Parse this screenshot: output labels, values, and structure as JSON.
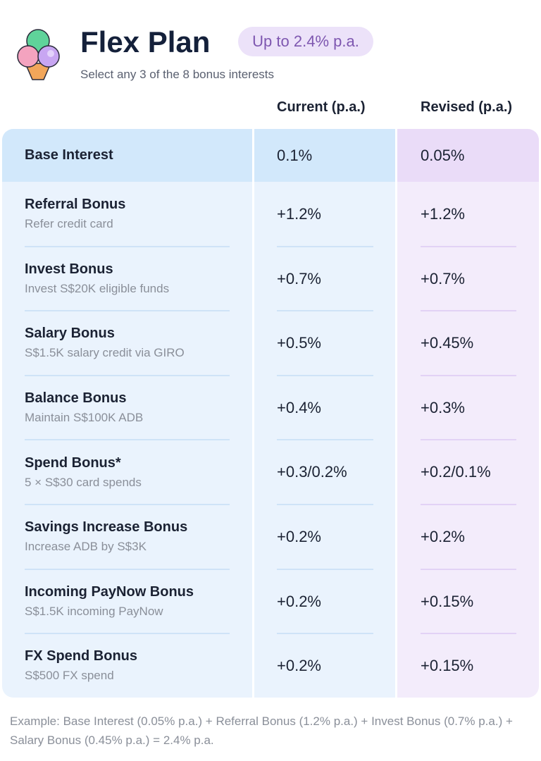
{
  "header": {
    "title": "Flex Plan",
    "badge": "Up to 2.4% p.a.",
    "subtitle": "Select any 3 of the 8 bonus interests"
  },
  "table": {
    "columns": [
      "Current (p.a.)",
      "Revised (p.a.)"
    ],
    "base": {
      "name": "Base Interest",
      "current": "0.1%",
      "revised": "0.05%"
    },
    "rows": [
      {
        "name": "Referral Bonus",
        "desc": "Refer credit card",
        "current": "+1.2%",
        "revised": "+1.2%"
      },
      {
        "name": "Invest Bonus",
        "desc": "Invest S$20K eligible funds",
        "current": "+0.7%",
        "revised": "+0.7%"
      },
      {
        "name": "Salary Bonus",
        "desc": "S$1.5K salary credit via GIRO",
        "current": "+0.5%",
        "revised": "+0.45%"
      },
      {
        "name": "Balance Bonus",
        "desc": "Maintain S$100K ADB",
        "current": "+0.4%",
        "revised": "+0.3%"
      },
      {
        "name": "Spend Bonus*",
        "desc": "5 × S$30 card spends",
        "current": "+0.3/0.2%",
        "revised": "+0.2/0.1%"
      },
      {
        "name": "Savings Increase Bonus",
        "desc": "Increase ADB by S$3K",
        "current": "+0.2%",
        "revised": "+0.2%"
      },
      {
        "name": "Incoming PayNow Bonus",
        "desc": "S$1.5K incoming PayNow",
        "current": "+0.2%",
        "revised": "+0.15%"
      },
      {
        "name": "FX Spend Bonus",
        "desc": "S$500 FX spend",
        "current": "+0.2%",
        "revised": "+0.15%"
      }
    ]
  },
  "footnote": "Example: Base Interest (0.05% p.a.) + Referral Bonus (1.2% p.a.) + Invest Bonus (0.7% p.a.) + Salary Bonus (0.45% p.a.) = 2.4% p.a."
}
